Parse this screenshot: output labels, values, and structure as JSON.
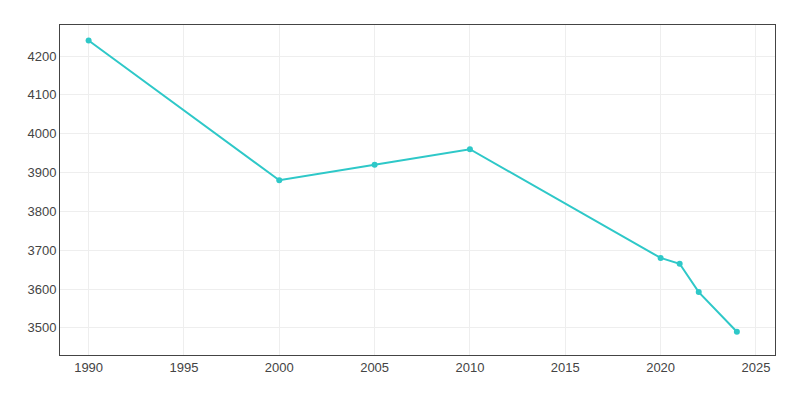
{
  "chart_data": {
    "type": "line",
    "x": [
      1990,
      2000,
      2005,
      2010,
      2020,
      2021,
      2022,
      2024
    ],
    "values": [
      4240,
      3880,
      3920,
      3960,
      3680,
      3665,
      3592,
      3490
    ],
    "color": "#2ec8c8",
    "marker": "circle",
    "line_style": "solid",
    "xlim": [
      1988.5,
      2026
    ],
    "xticks": [
      1990,
      1995,
      2000,
      2005,
      2010,
      2015,
      2020,
      2025
    ],
    "ylim": [
      3430,
      4280
    ],
    "yticks": [
      3500,
      3600,
      3700,
      3800,
      3900,
      4000,
      4100,
      4200
    ],
    "grid": true
  }
}
